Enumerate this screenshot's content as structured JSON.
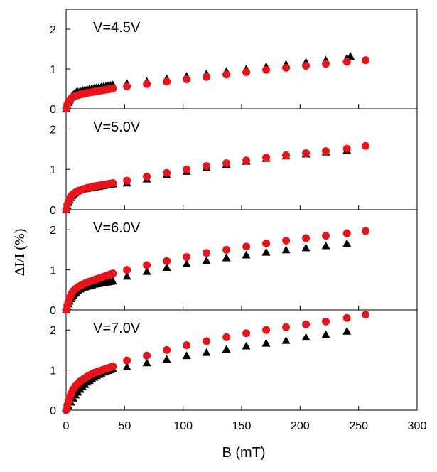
{
  "chart_data": {
    "type": "scatter",
    "xlabel": "B (mT)",
    "ylabel": "ΔI/I (%)",
    "xlim": [
      0,
      300
    ],
    "xticks": [
      "0",
      "50",
      "100",
      "150",
      "200",
      "250",
      "300"
    ],
    "ylim": [
      0,
      2.5
    ],
    "yticks": [
      "0",
      "1",
      "2"
    ],
    "colors": {
      "triangle": "#000000",
      "circle": "#e8141b"
    },
    "panels": [
      {
        "label": "V=4.5V",
        "series": [
          {
            "marker": "triangle",
            "x": [
              0,
              1,
              2,
              3,
              4,
              5,
              6,
              7,
              8,
              9,
              10,
              12,
              14,
              16,
              18,
              20,
              22,
              24,
              26,
              28,
              30,
              32,
              34,
              36,
              38,
              40,
              52,
              69,
              86,
              103,
              120,
              137,
              154,
              171,
              188,
              205,
              222,
              240,
              243
            ],
            "y": [
              0.0,
              0.08,
              0.16,
              0.22,
              0.28,
              0.32,
              0.35,
              0.38,
              0.4,
              0.42,
              0.43,
              0.45,
              0.47,
              0.48,
              0.49,
              0.5,
              0.51,
              0.52,
              0.53,
              0.54,
              0.55,
              0.56,
              0.57,
              0.58,
              0.59,
              0.6,
              0.64,
              0.69,
              0.76,
              0.82,
              0.88,
              0.94,
              1.0,
              1.06,
              1.12,
              1.17,
              1.22,
              1.27,
              1.32
            ]
          },
          {
            "marker": "circle",
            "x": [
              0,
              1,
              2,
              3,
              4,
              5,
              6,
              8,
              10,
              12,
              14,
              16,
              18,
              20,
              22,
              24,
              26,
              28,
              30,
              32,
              34,
              36,
              38,
              40,
              52,
              69,
              86,
              103,
              120,
              137,
              154,
              171,
              188,
              205,
              222,
              240,
              256
            ],
            "y": [
              0.0,
              0.1,
              0.16,
              0.2,
              0.24,
              0.28,
              0.3,
              0.32,
              0.34,
              0.36,
              0.37,
              0.39,
              0.4,
              0.41,
              0.42,
              0.43,
              0.44,
              0.45,
              0.46,
              0.47,
              0.48,
              0.49,
              0.5,
              0.51,
              0.56,
              0.62,
              0.68,
              0.74,
              0.8,
              0.86,
              0.92,
              0.98,
              1.03,
              1.08,
              1.13,
              1.18,
              1.22
            ]
          }
        ]
      },
      {
        "label": "V=5.0V",
        "series": [
          {
            "marker": "triangle",
            "x": [
              0,
              1,
              2,
              3,
              4,
              5,
              6,
              7,
              8,
              9,
              10,
              12,
              14,
              16,
              18,
              20,
              22,
              24,
              26,
              28,
              30,
              32,
              34,
              36,
              38,
              40,
              52,
              69,
              86,
              103,
              120,
              137,
              154,
              171,
              188,
              205,
              222,
              240
            ],
            "y": [
              0.0,
              0.1,
              0.18,
              0.24,
              0.3,
              0.35,
              0.38,
              0.41,
              0.43,
              0.45,
              0.47,
              0.49,
              0.51,
              0.52,
              0.53,
              0.54,
              0.55,
              0.56,
              0.57,
              0.58,
              0.59,
              0.6,
              0.61,
              0.62,
              0.63,
              0.64,
              0.66,
              0.76,
              0.86,
              0.95,
              1.04,
              1.12,
              1.2,
              1.27,
              1.33,
              1.38,
              1.43,
              1.47
            ]
          },
          {
            "marker": "circle",
            "x": [
              0,
              1,
              2,
              3,
              4,
              5,
              6,
              8,
              10,
              12,
              14,
              16,
              18,
              20,
              22,
              24,
              26,
              28,
              30,
              32,
              34,
              36,
              38,
              40,
              52,
              69,
              86,
              103,
              120,
              137,
              154,
              171,
              188,
              205,
              222,
              240,
              256
            ],
            "y": [
              0.0,
              0.12,
              0.2,
              0.26,
              0.32,
              0.36,
              0.39,
              0.43,
              0.46,
              0.48,
              0.5,
              0.52,
              0.54,
              0.55,
              0.57,
              0.58,
              0.59,
              0.6,
              0.61,
              0.62,
              0.63,
              0.64,
              0.65,
              0.66,
              0.72,
              0.82,
              0.91,
              1.0,
              1.08,
              1.15,
              1.22,
              1.29,
              1.35,
              1.4,
              1.45,
              1.51,
              1.58
            ]
          }
        ]
      },
      {
        "label": "V=6.0V",
        "series": [
          {
            "marker": "triangle",
            "x": [
              0,
              1,
              2,
              3,
              4,
              5,
              6,
              7,
              8,
              9,
              10,
              12,
              14,
              16,
              18,
              20,
              22,
              24,
              26,
              28,
              30,
              32,
              34,
              36,
              38,
              40,
              52,
              69,
              86,
              103,
              120,
              137,
              154,
              171,
              188,
              205,
              222,
              240
            ],
            "y": [
              0.0,
              0.08,
              0.15,
              0.22,
              0.28,
              0.33,
              0.37,
              0.41,
              0.44,
              0.47,
              0.49,
              0.52,
              0.55,
              0.57,
              0.59,
              0.61,
              0.62,
              0.64,
              0.65,
              0.66,
              0.67,
              0.68,
              0.69,
              0.7,
              0.71,
              0.72,
              0.84,
              0.96,
              1.06,
              1.15,
              1.23,
              1.3,
              1.37,
              1.44,
              1.5,
              1.55,
              1.6,
              1.66
            ]
          },
          {
            "marker": "circle",
            "x": [
              0,
              1,
              2,
              3,
              4,
              5,
              6,
              8,
              10,
              12,
              14,
              16,
              18,
              20,
              22,
              24,
              26,
              28,
              30,
              32,
              34,
              36,
              38,
              40,
              52,
              69,
              86,
              103,
              120,
              137,
              154,
              171,
              188,
              205,
              222,
              240,
              256
            ],
            "y": [
              0.0,
              0.12,
              0.22,
              0.3,
              0.36,
              0.42,
              0.47,
              0.52,
              0.57,
              0.6,
              0.63,
              0.66,
              0.69,
              0.71,
              0.73,
              0.75,
              0.77,
              0.79,
              0.81,
              0.83,
              0.85,
              0.87,
              0.89,
              0.91,
              1.0,
              1.12,
              1.22,
              1.32,
              1.42,
              1.5,
              1.58,
              1.66,
              1.73,
              1.79,
              1.85,
              1.91,
              1.97
            ]
          }
        ]
      },
      {
        "label": "V=7.0V",
        "series": [
          {
            "marker": "triangle",
            "x": [
              0,
              2,
              4,
              6,
              8,
              10,
              12,
              14,
              16,
              18,
              20,
              22,
              24,
              26,
              28,
              30,
              32,
              34,
              36,
              38,
              40,
              52,
              69,
              86,
              103,
              120,
              137,
              154,
              171,
              188,
              205,
              222,
              240
            ],
            "y": [
              0.05,
              0.1,
              0.2,
              0.3,
              0.38,
              0.45,
              0.52,
              0.58,
              0.64,
              0.7,
              0.74,
              0.78,
              0.82,
              0.86,
              0.89,
              0.92,
              0.95,
              0.97,
              0.99,
              1.01,
              1.03,
              1.08,
              1.18,
              1.27,
              1.36,
              1.44,
              1.52,
              1.6,
              1.67,
              1.74,
              1.82,
              1.89,
              1.97
            ]
          },
          {
            "marker": "circle",
            "x": [
              0,
              1,
              2,
              3,
              4,
              5,
              6,
              8,
              10,
              12,
              14,
              16,
              18,
              20,
              22,
              24,
              26,
              28,
              30,
              32,
              34,
              36,
              38,
              40,
              52,
              69,
              86,
              103,
              120,
              137,
              154,
              171,
              188,
              205,
              222,
              240,
              256
            ],
            "y": [
              0.0,
              0.12,
              0.22,
              0.3,
              0.38,
              0.45,
              0.52,
              0.6,
              0.66,
              0.72,
              0.76,
              0.8,
              0.84,
              0.87,
              0.9,
              0.93,
              0.95,
              0.97,
              0.99,
              1.01,
              1.03,
              1.05,
              1.07,
              1.09,
              1.24,
              1.36,
              1.5,
              1.62,
              1.72,
              1.82,
              1.92,
              2.0,
              2.07,
              2.14,
              2.21,
              2.3,
              2.38
            ]
          }
        ]
      }
    ]
  }
}
